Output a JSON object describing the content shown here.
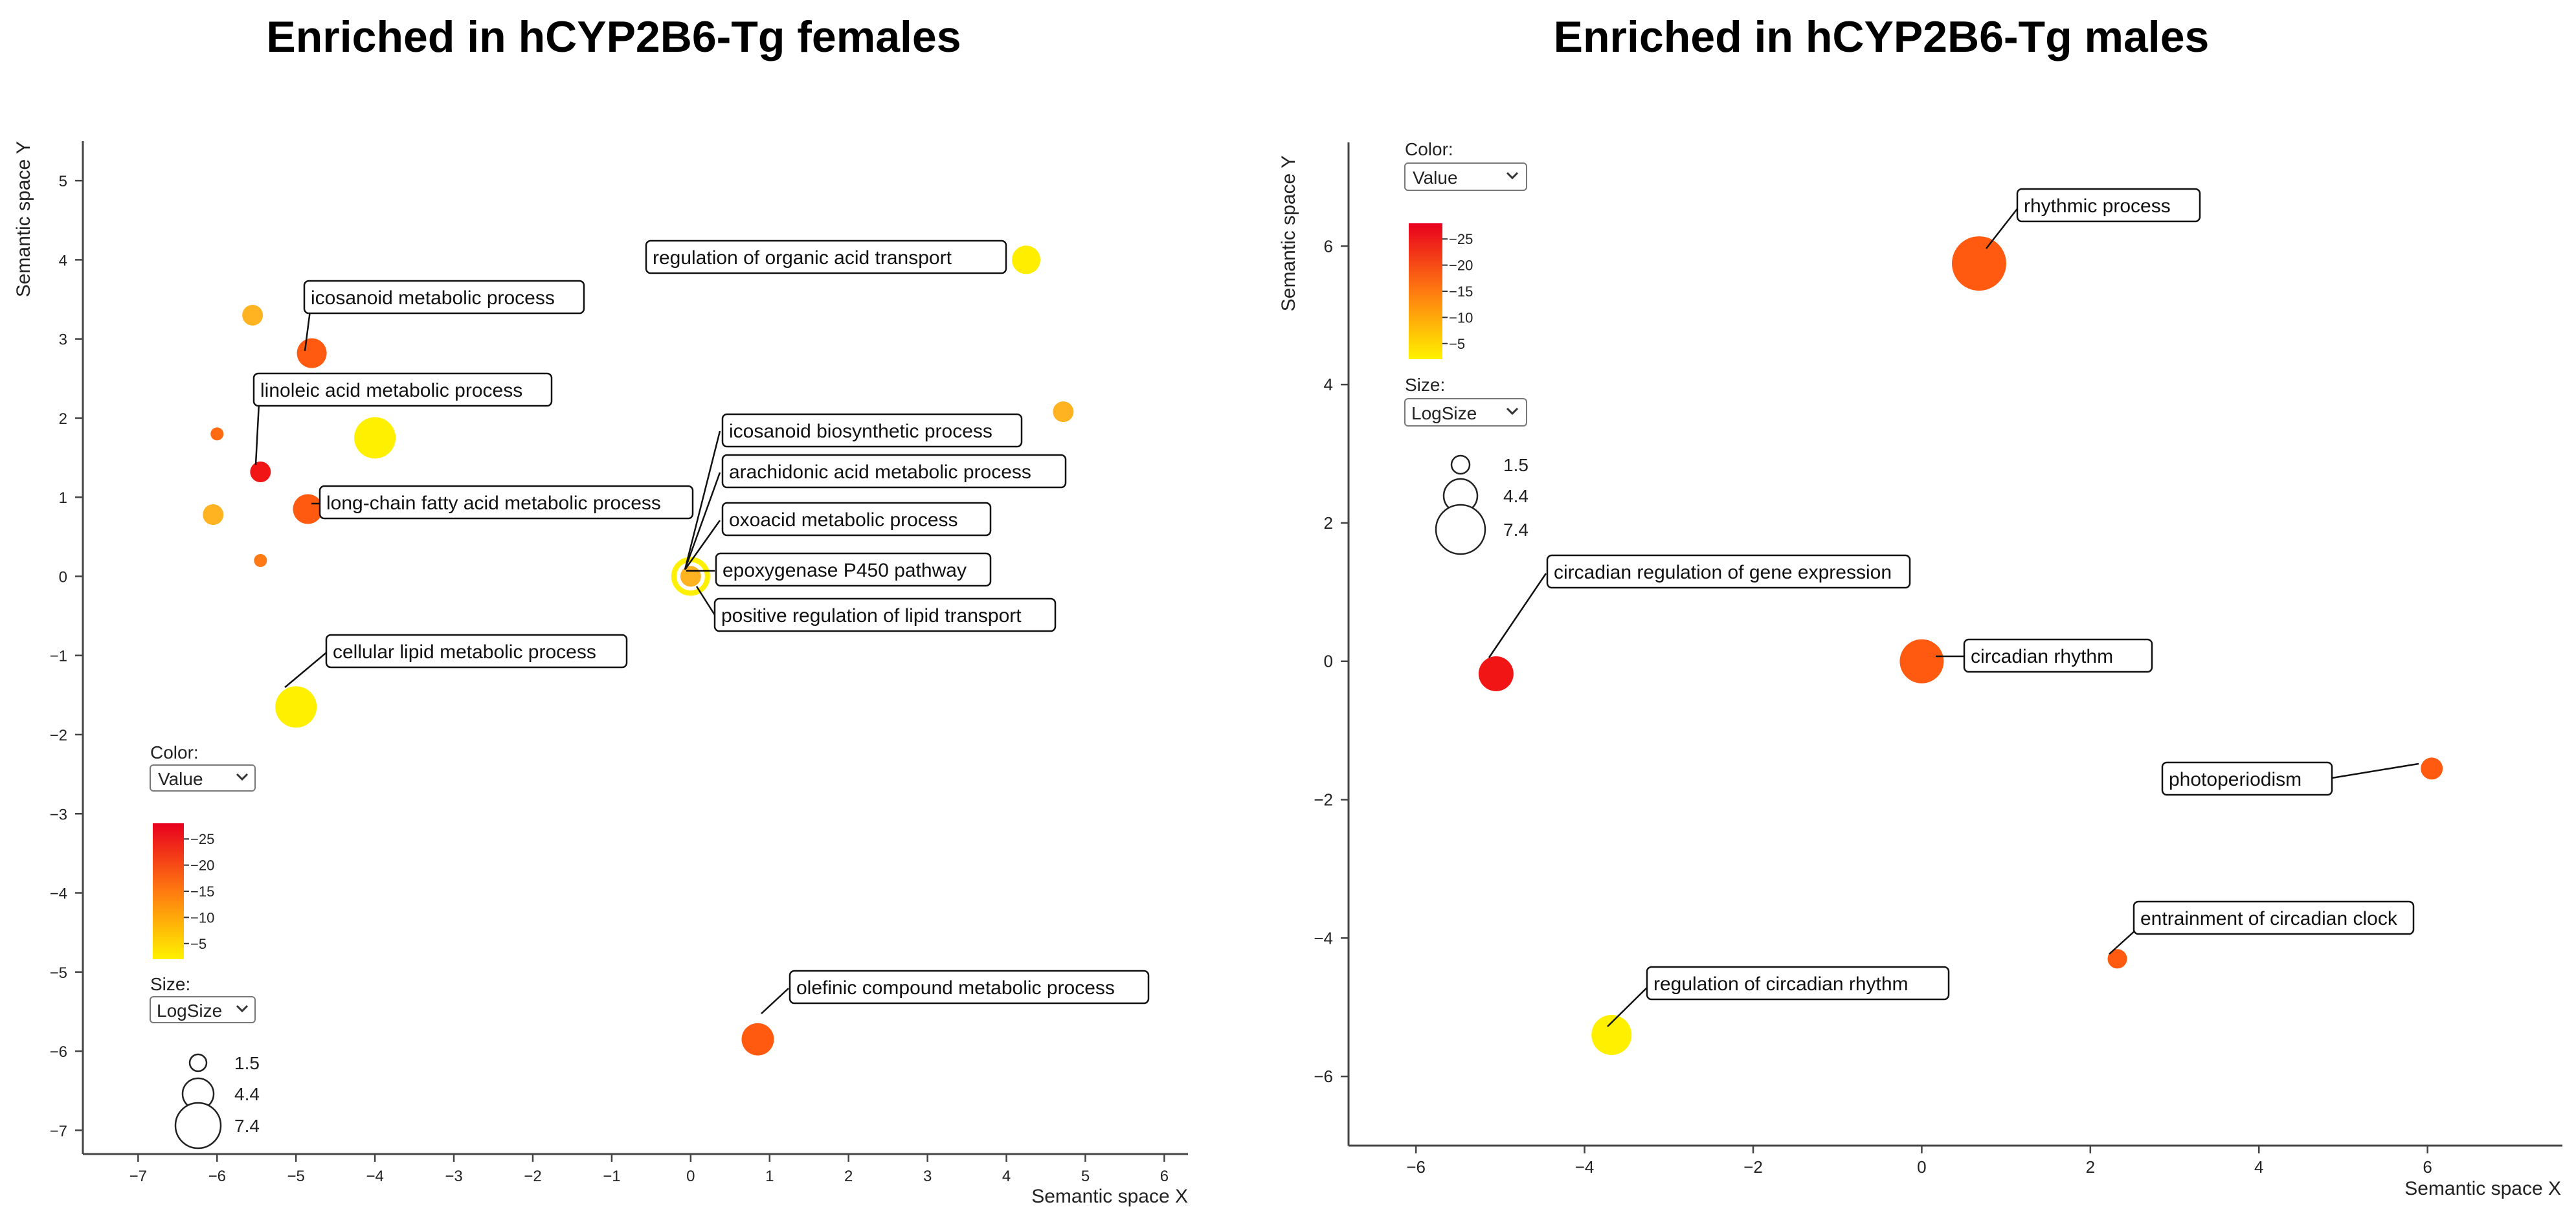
{
  "chart_data": [
    {
      "type": "scatter",
      "title": "Enriched in hCYP2B6-Tg females",
      "xlabel": "Semantic space X",
      "ylabel": "Semantic space Y",
      "xlim": [
        -7.7,
        6.3
      ],
      "ylim": [
        -7.3,
        5.5
      ],
      "xticks": [
        -7,
        -6,
        -5,
        -4,
        -3,
        -2,
        -1,
        0,
        1,
        2,
        3,
        4,
        5,
        6
      ],
      "yticks": [
        -7,
        -6,
        -5,
        -4,
        -3,
        -2,
        -1,
        0,
        1,
        2,
        3,
        4,
        5
      ],
      "color_control": {
        "label": "Color:",
        "value": "Value"
      },
      "size_control": {
        "label": "Size:",
        "value": "LogSize"
      },
      "color_scale": {
        "min": -28,
        "max": -2,
        "ticks": [
          -25,
          -20,
          -15,
          -10,
          -5
        ]
      },
      "size_legend": [
        1.5,
        4.4,
        7.4
      ],
      "points": [
        {
          "x": 4.25,
          "y": 4.0,
          "r": 22,
          "color": "#FFEE00",
          "label": "regulation of organic acid transport"
        },
        {
          "x": -5.55,
          "y": 3.3,
          "r": 16,
          "color": "#FFB321",
          "label": ""
        },
        {
          "x": -4.8,
          "y": 2.82,
          "r": 23,
          "color": "#FF5A10",
          "label": "icosanoid metabolic process"
        },
        {
          "x": 4.72,
          "y": 2.08,
          "r": 16,
          "color": "#FFB321",
          "label": ""
        },
        {
          "x": -6.0,
          "y": 1.8,
          "r": 10,
          "color": "#FF6A12",
          "label": ""
        },
        {
          "x": -4.0,
          "y": 1.75,
          "r": 32,
          "color": "#FFF000",
          "label": ""
        },
        {
          "x": -5.45,
          "y": 1.32,
          "r": 16,
          "color": "#F21515",
          "label": "linoleic acid metabolic process"
        },
        {
          "x": -4.85,
          "y": 0.85,
          "r": 23,
          "color": "#FF5A10",
          "label": "long-chain fatty acid metabolic process"
        },
        {
          "x": -6.05,
          "y": 0.78,
          "r": 16,
          "color": "#FFB321",
          "label": ""
        },
        {
          "x": -5.45,
          "y": 0.2,
          "r": 10,
          "color": "#FF7A14",
          "label": ""
        },
        {
          "x": -5.0,
          "y": -1.65,
          "r": 32,
          "color": "#FFF000",
          "label": "cellular lipid metabolic process"
        },
        {
          "x": 0.85,
          "y": -5.85,
          "r": 25,
          "color": "#FF5A10",
          "label": "olefinic compound metabolic process"
        },
        {
          "x": 0.0,
          "y": 0.0,
          "r": 30,
          "color": "#FFF000",
          "label": "positive regulation of lipid transport"
        },
        {
          "x": 0.0,
          "y": 0.0,
          "r": 22,
          "color": "#FFFFFF",
          "label": ""
        },
        {
          "x": 0.0,
          "y": 0.0,
          "r": 16,
          "color": "#FFB321",
          "label": "icosanoid biosynthetic process"
        }
      ],
      "cluster_labels": [
        "arachidonic acid metabolic process",
        "oxoacid metabolic process",
        "epoxygenase P450 pathway"
      ]
    },
    {
      "type": "scatter",
      "title": "Enriched in hCYP2B6-Tg males",
      "xlabel": "Semantic space X",
      "ylabel": "Semantic space Y",
      "xlim": [
        -6.8,
        7.6
      ],
      "ylim": [
        -7.0,
        7.5
      ],
      "xticks": [
        -6,
        -4,
        -2,
        0,
        2,
        4,
        6
      ],
      "yticks": [
        -6,
        -4,
        -2,
        0,
        2,
        4,
        6
      ],
      "color_control": {
        "label": "Color:",
        "value": "Value"
      },
      "size_control": {
        "label": "Size:",
        "value": "LogSize"
      },
      "color_scale": {
        "min": -28,
        "max": -2,
        "ticks": [
          -25,
          -20,
          -15,
          -10,
          -5
        ]
      },
      "size_legend": [
        1.5,
        4.4,
        7.4
      ],
      "points": [
        {
          "x": 0.68,
          "y": 5.75,
          "r": 42,
          "color": "#FF5A10",
          "label": "rhythmic process"
        },
        {
          "x": -5.05,
          "y": -0.18,
          "r": 27,
          "color": "#F21515",
          "label": "circadian regulation of gene expression"
        },
        {
          "x": 0.0,
          "y": 0.0,
          "r": 34,
          "color": "#FF5A10",
          "label": "circadian rhythm"
        },
        {
          "x": 6.05,
          "y": -1.55,
          "r": 17,
          "color": "#FF5A10",
          "label": "photoperiodism"
        },
        {
          "x": 2.32,
          "y": -4.3,
          "r": 15,
          "color": "#FF5A10",
          "label": "entrainment of circadian clock"
        },
        {
          "x": -3.68,
          "y": -5.4,
          "r": 31,
          "color": "#FFF000",
          "label": "regulation of circadian rhythm"
        }
      ]
    }
  ]
}
